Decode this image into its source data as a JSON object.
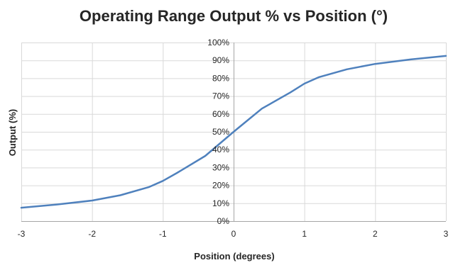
{
  "chart_data": {
    "type": "line",
    "title": "Operating Range Output % vs Position (°)",
    "xlabel": "Position (degrees)",
    "ylabel": "Output (%)",
    "xlim": [
      -3,
      3
    ],
    "ylim": [
      0,
      100
    ],
    "x_ticks": [
      -3,
      -2,
      -1,
      0,
      1,
      2,
      3
    ],
    "x_tick_labels": [
      "-3",
      "-2",
      "-1",
      "0",
      "1",
      "2",
      "3"
    ],
    "y_ticks": [
      0,
      10,
      20,
      30,
      40,
      50,
      60,
      70,
      80,
      90,
      100
    ],
    "y_tick_labels": [
      "0%",
      "10%",
      "20%",
      "30%",
      "40%",
      "50%",
      "60%",
      "70%",
      "80%",
      "90%",
      "100%"
    ],
    "grid": true,
    "legend": "none",
    "series": [
      {
        "color": "#4f81bd",
        "x": [
          -3,
          -2.5,
          -2,
          -1.6,
          -1.2,
          -1,
          -0.8,
          -0.4,
          0,
          0.2,
          0.4,
          0.8,
          1,
          1.2,
          1.6,
          2,
          2.5,
          3
        ],
        "y": [
          7.5,
          9.3,
          11.5,
          14.5,
          19,
          22.5,
          27,
          36.5,
          50,
          56.5,
          63,
          72,
          77,
          80.5,
          85,
          88,
          90.5,
          92.5
        ]
      }
    ]
  }
}
